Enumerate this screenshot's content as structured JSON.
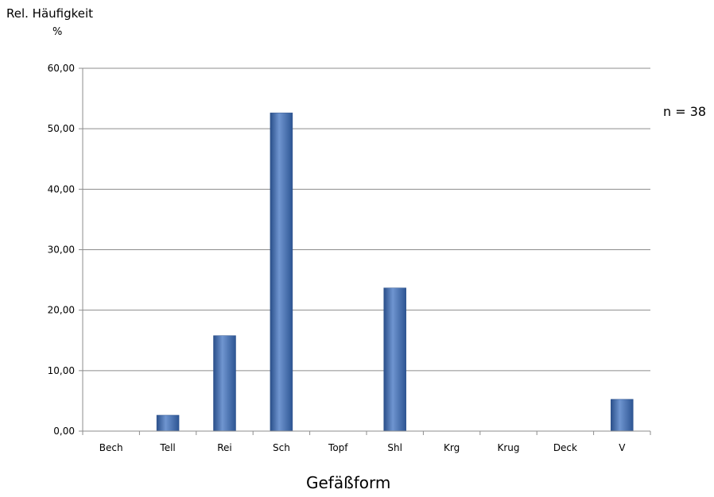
{
  "chart_data": {
    "type": "bar",
    "ylabel": "Rel. Häufigkeit",
    "yunit": "%",
    "xlabel": "Gefäßform",
    "annotation": "n = 38",
    "categories": [
      "Bech",
      "Tell",
      "Rei",
      "Sch",
      "Topf",
      "Shl",
      "Krg",
      "Krug",
      "Deck",
      "V"
    ],
    "values": [
      0,
      2.63,
      15.79,
      52.63,
      0,
      23.68,
      0,
      0,
      0,
      5.26
    ],
    "yticks": [
      "0,00",
      "10,00",
      "20,00",
      "30,00",
      "40,00",
      "50,00",
      "60,00"
    ],
    "ylim": [
      0,
      60
    ],
    "grid": true,
    "bar_color": "#3c6aad"
  }
}
